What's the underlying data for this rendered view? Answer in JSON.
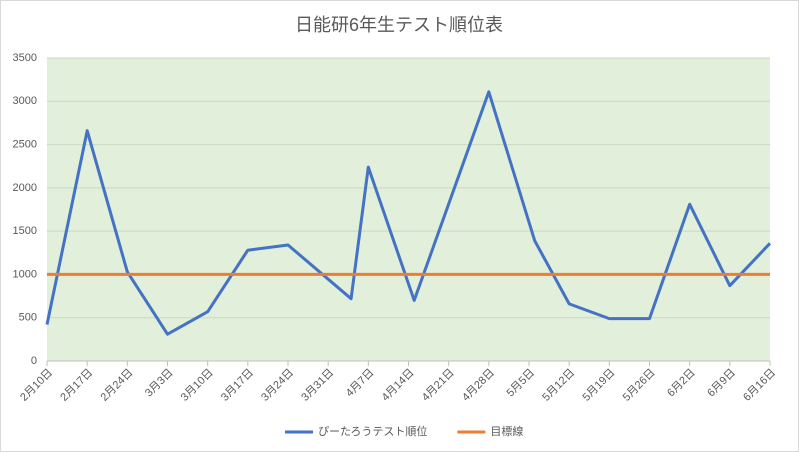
{
  "chart_data": {
    "type": "line",
    "title": "日能研6年生テスト順位表",
    "xticks": [
      "2月10日",
      "2月17日",
      "2月24日",
      "3月3日",
      "3月10日",
      "3月17日",
      "3月24日",
      "3月31日",
      "4月7日",
      "4月14日",
      "4月21日",
      "4月28日",
      "5月5日",
      "5月12日",
      "5月19日",
      "5月26日",
      "6月2日",
      "6月9日",
      "6月16日"
    ],
    "series": [
      {
        "name": "ぴーたろうテスト順位",
        "color": "#4472c4",
        "x": [
          "2月10日",
          "2月17日",
          "2月24日",
          "3月3日",
          "3月10日",
          "3月17日",
          "3月24日",
          "4月4日",
          "4月7日",
          "4月15日",
          "4月28日",
          "5月6日",
          "5月12日",
          "5月19日",
          "5月26日",
          "6月2日",
          "6月9日",
          "6月16日"
        ],
        "values": [
          420,
          2660,
          1030,
          310,
          570,
          1280,
          1340,
          720,
          2240,
          700,
          3110,
          1390,
          660,
          490,
          490,
          1810,
          870,
          1360
        ]
      },
      {
        "name": "目標線",
        "color": "#ed7d31",
        "x": [
          "2月10日",
          "6月16日"
        ],
        "values": [
          1000,
          1000
        ]
      }
    ],
    "ylim": [
      0,
      3500
    ],
    "yticks": [
      0,
      500,
      1000,
      1500,
      2000,
      2500,
      3000,
      3500
    ],
    "grid": true,
    "legend": "bottom",
    "plot_background": "#e2efda"
  }
}
